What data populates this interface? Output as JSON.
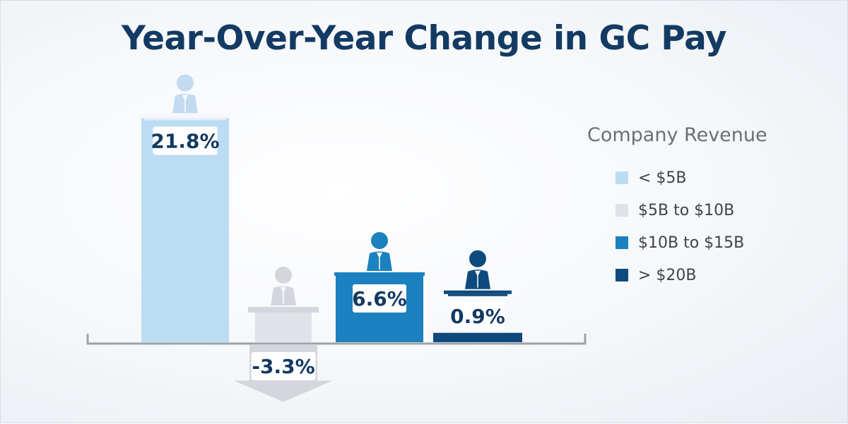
{
  "title": "Year-Over-Year Change in GC Pay",
  "legend": {
    "title": "Company Revenue"
  },
  "chart_data": {
    "type": "bar",
    "title": "Year-Over-Year Change in GC Pay",
    "xlabel": "",
    "ylabel": "",
    "legend_title": "Company Revenue",
    "legend_position": "right",
    "grid": false,
    "ylim": [
      -3.3,
      21.8
    ],
    "series": [
      {
        "name": "< $5B",
        "value": 21.8,
        "label": "21.8%",
        "color": "#bcdcf4"
      },
      {
        "name": "$5B to $10B",
        "value": -3.3,
        "label": "-3.3%",
        "color": "#dfe2e7"
      },
      {
        "name": "$10B to $15B",
        "value": 6.6,
        "label": "6.6%",
        "color": "#1b81bf"
      },
      {
        "name": "> $20B",
        "value": 0.9,
        "label": "0.9%",
        "color": "#0f4a7c"
      }
    ],
    "figure_colors": [
      "#c3dbf0",
      "#d3d7dd",
      "#1b81bf",
      "#0f4a7c"
    ],
    "arrow_color": "#d3d6da",
    "axis_color": "#9ea2a7",
    "icons": [
      "podium-speaker-icon",
      "down-arrow-icon"
    ]
  }
}
